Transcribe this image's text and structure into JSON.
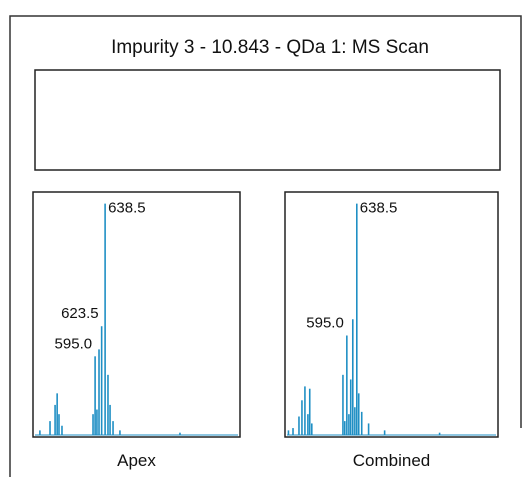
{
  "title": "Impurity 3 - 10.843 - QDa 1: MS Scan",
  "chart_data": [
    {
      "type": "bar",
      "title": "Apex",
      "color": "#1f8fc4",
      "xlim": [
        325,
        1225
      ],
      "ylim": [
        0,
        105
      ],
      "x": [
        355,
        399,
        421,
        430,
        438,
        451,
        586,
        595.0,
        603,
        612,
        623.5,
        638.5,
        651,
        660,
        673,
        703,
        964
      ],
      "values": [
        2,
        6,
        13,
        18,
        9,
        4,
        9,
        34,
        11,
        37,
        47,
        100,
        26,
        13,
        6,
        2,
        1
      ],
      "annotations": [
        {
          "value": 638.5,
          "label": "638.5"
        },
        {
          "value": 623.5,
          "label": "623.5"
        },
        {
          "value": 595.0,
          "label": "595.0"
        }
      ]
    },
    {
      "type": "bar",
      "title": "Combined",
      "color": "#1f8fc4",
      "xlim": [
        325,
        1255
      ],
      "ylim": [
        0,
        105
      ],
      "x": [
        340,
        360,
        386,
        399,
        412,
        425,
        433,
        442,
        578,
        586,
        595.0,
        604,
        612,
        621,
        630,
        638.5,
        647,
        660,
        690,
        760,
        1000
      ],
      "values": [
        2,
        3,
        8,
        15,
        21,
        9,
        20,
        5,
        26,
        6,
        43,
        9,
        24,
        50,
        12,
        100,
        18,
        10,
        5,
        2,
        1
      ],
      "annotations": [
        {
          "value": 638.5,
          "label": "638.5"
        },
        {
          "value": 595.0,
          "label": "595.0"
        }
      ]
    }
  ]
}
